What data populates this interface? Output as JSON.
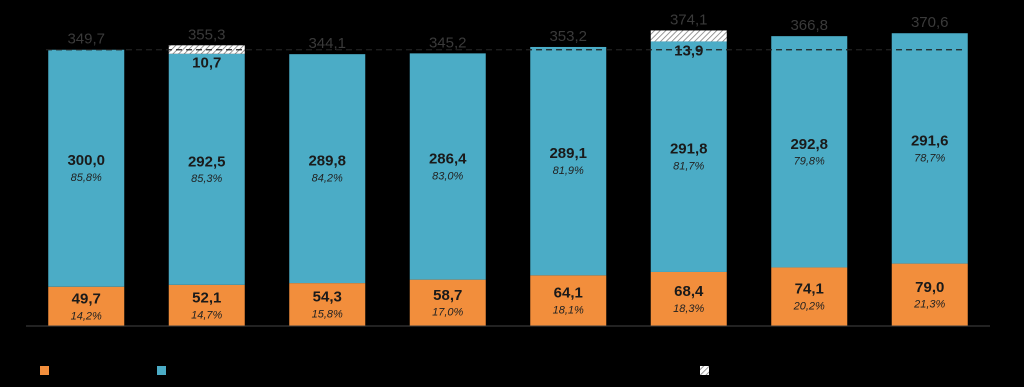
{
  "chart_data": {
    "type": "stacked_bar",
    "categories": [
      null,
      null,
      null,
      null,
      null,
      null,
      null,
      null
    ],
    "series": [
      {
        "color": "#f28e3c",
        "values": [
          49.7,
          52.1,
          54.3,
          58.7,
          64.1,
          68.4,
          74.1,
          79.0
        ],
        "value_labels": [
          "49,7",
          "52,1",
          "54,3",
          "58,7",
          "64,1",
          "68,4",
          "74,1",
          "79,0"
        ],
        "shares": [
          14.2,
          14.7,
          15.8,
          17.0,
          18.1,
          18.3,
          20.2,
          21.3
        ],
        "share_labels": [
          "14,2%",
          "14,7%",
          "15,8%",
          "17,0%",
          "18,1%",
          "18,3%",
          "20,2%",
          "21,3%"
        ]
      },
      {
        "color": "#4bacc6",
        "values": [
          300.0,
          292.5,
          289.8,
          286.4,
          289.1,
          291.8,
          292.8,
          291.6
        ],
        "value_labels": [
          "300,0",
          "292,5",
          "289,8",
          "286,4",
          "289,1",
          "291,8",
          "292,8",
          "291,6"
        ],
        "shares": [
          85.8,
          85.3,
          84.2,
          83.0,
          81.9,
          81.7,
          79.8,
          78.7
        ],
        "share_labels": [
          "85,8%",
          "85,3%",
          "84,2%",
          "83,0%",
          "81,9%",
          "81,7%",
          "79,8%",
          "78,7%"
        ]
      },
      {
        "color": "hatch",
        "values": [
          null,
          10.7,
          null,
          null,
          null,
          13.9,
          null,
          null
        ],
        "value_labels": [
          null,
          "10,7",
          null,
          null,
          null,
          "13,9",
          null,
          null
        ]
      }
    ],
    "totals": {
      "values": [
        349.7,
        355.3,
        344.1,
        345.2,
        353.2,
        374.1,
        366.8,
        370.6
      ],
      "value_labels": [
        "349,7",
        "355,3",
        "344,1",
        "345,2",
        "353,2",
        "374,1",
        "366,8",
        "370,6"
      ]
    },
    "reference_line": 349.7,
    "ylim": [
      0,
      400
    ]
  }
}
